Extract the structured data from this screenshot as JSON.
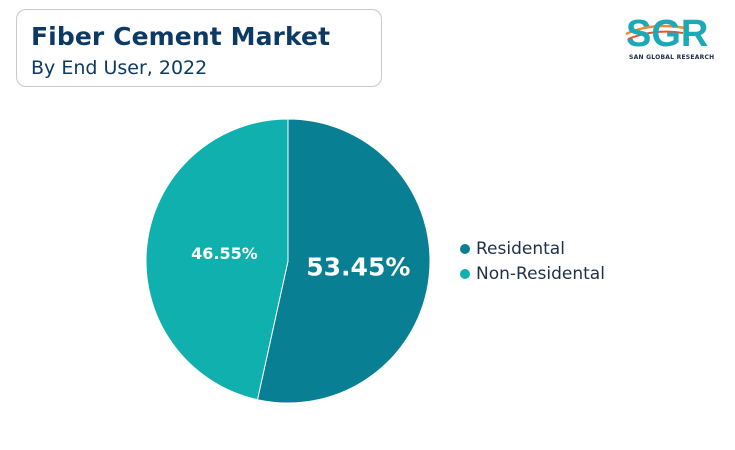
{
  "header": {
    "title": "Fiber Cement Market",
    "subtitle": "By End User, 2022"
  },
  "logo": {
    "text": "SGR",
    "tagline": "SAN GLOBAL RESEARCH"
  },
  "chart_data": {
    "type": "pie",
    "title": "Fiber Cement Market",
    "subtitle": "By End User, 2022",
    "slices": [
      {
        "name": "Residental",
        "value": 53.45,
        "label": "53.45%",
        "color": "#097f93"
      },
      {
        "name": "Non-Residental",
        "value": 46.55,
        "label": "46.55%",
        "color": "#0fb0ae"
      }
    ],
    "legend_position": "right"
  }
}
